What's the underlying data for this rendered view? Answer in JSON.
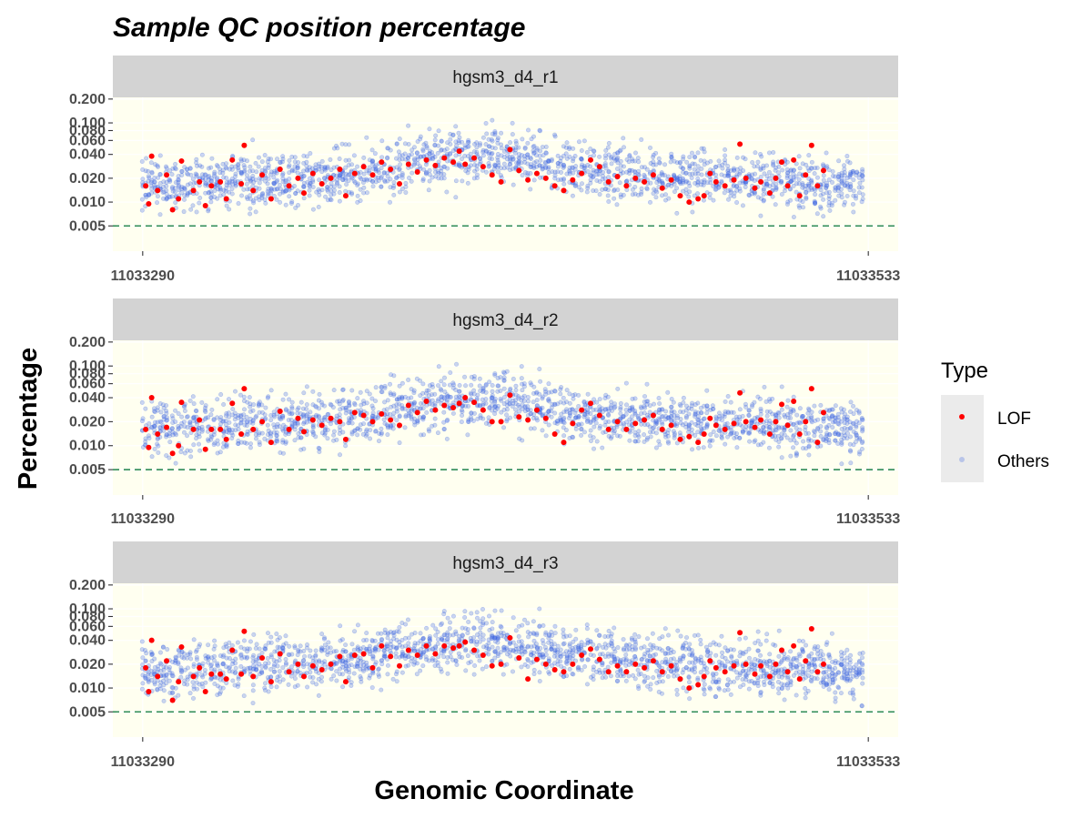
{
  "chart_data": {
    "type": "scatter",
    "title": "Sample QC position percentage",
    "xlabel": "Genomic Coordinate",
    "ylabel": "Percentage",
    "x_ticks": [
      "11033290",
      "11033533"
    ],
    "xlim": [
      11033280,
      11033543
    ],
    "y_scale": "log10",
    "y_ticks": [
      "0.005",
      "0.010",
      "0.020",
      "0.040",
      "0.060",
      "0.080",
      "0.100",
      "0.200"
    ],
    "ylim": [
      0.0024,
      0.21
    ],
    "threshold": 0.005,
    "legend": {
      "title": "Type",
      "placement": "right",
      "entries": [
        {
          "label": "LOF",
          "color": "#ff0000"
        },
        {
          "label": "Others",
          "color": "#4169e1"
        }
      ]
    },
    "colors": {
      "panel_bg": "#fffff0",
      "strip_bg": "#d3d3d3",
      "threshold_line": "#2e8b57",
      "lof": "#ff0000",
      "others": "#4169e1"
    },
    "panels": [
      {
        "strip": "hgsm3_d4_r1",
        "lof_points": [
          [
            11033291,
            0.016
          ],
          [
            11033292,
            0.0095
          ],
          [
            11033293,
            0.038
          ],
          [
            11033295,
            0.014
          ],
          [
            11033298,
            0.022
          ],
          [
            11033300,
            0.008
          ],
          [
            11033302,
            0.011
          ],
          [
            11033303,
            0.033
          ],
          [
            11033307,
            0.014
          ],
          [
            11033309,
            0.018
          ],
          [
            11033311,
            0.009
          ],
          [
            11033313,
            0.016
          ],
          [
            11033316,
            0.018
          ],
          [
            11033318,
            0.011
          ],
          [
            11033320,
            0.034
          ],
          [
            11033323,
            0.017
          ],
          [
            11033324,
            0.052
          ],
          [
            11033327,
            0.014
          ],
          [
            11033330,
            0.022
          ],
          [
            11033333,
            0.011
          ],
          [
            11033336,
            0.026
          ],
          [
            11033339,
            0.016
          ],
          [
            11033342,
            0.02
          ],
          [
            11033344,
            0.013
          ],
          [
            11033347,
            0.023
          ],
          [
            11033350,
            0.017
          ],
          [
            11033353,
            0.02
          ],
          [
            11033356,
            0.026
          ],
          [
            11033358,
            0.012
          ],
          [
            11033361,
            0.023
          ],
          [
            11033364,
            0.028
          ],
          [
            11033367,
            0.022
          ],
          [
            11033370,
            0.032
          ],
          [
            11033373,
            0.026
          ],
          [
            11033376,
            0.017
          ],
          [
            11033379,
            0.03
          ],
          [
            11033382,
            0.024
          ],
          [
            11033385,
            0.034
          ],
          [
            11033388,
            0.029
          ],
          [
            11033391,
            0.036
          ],
          [
            11033394,
            0.032
          ],
          [
            11033396,
            0.044
          ],
          [
            11033398,
            0.03
          ],
          [
            11033401,
            0.036
          ],
          [
            11033404,
            0.028
          ],
          [
            11033407,
            0.022
          ],
          [
            11033410,
            0.018
          ],
          [
            11033413,
            0.046
          ],
          [
            11033416,
            0.025
          ],
          [
            11033419,
            0.019
          ],
          [
            11033422,
            0.023
          ],
          [
            11033425,
            0.02
          ],
          [
            11033428,
            0.016
          ],
          [
            11033431,
            0.014
          ],
          [
            11033434,
            0.019
          ],
          [
            11033437,
            0.023
          ],
          [
            11033440,
            0.034
          ],
          [
            11033443,
            0.028
          ],
          [
            11033446,
            0.018
          ],
          [
            11033449,
            0.021
          ],
          [
            11033452,
            0.016
          ],
          [
            11033455,
            0.02
          ],
          [
            11033458,
            0.018
          ],
          [
            11033461,
            0.022
          ],
          [
            11033464,
            0.015
          ],
          [
            11033467,
            0.019
          ],
          [
            11033470,
            0.012
          ],
          [
            11033473,
            0.01
          ],
          [
            11033476,
            0.011
          ],
          [
            11033478,
            0.012
          ],
          [
            11033480,
            0.023
          ],
          [
            11033482,
            0.018
          ],
          [
            11033485,
            0.016
          ],
          [
            11033488,
            0.019
          ],
          [
            11033490,
            0.054
          ],
          [
            11033492,
            0.02
          ],
          [
            11033495,
            0.015
          ],
          [
            11033497,
            0.018
          ],
          [
            11033500,
            0.013
          ],
          [
            11033502,
            0.02
          ],
          [
            11033504,
            0.032
          ],
          [
            11033506,
            0.016
          ],
          [
            11033508,
            0.034
          ],
          [
            11033510,
            0.012
          ],
          [
            11033512,
            0.022
          ],
          [
            11033514,
            0.052
          ],
          [
            11033516,
            0.016
          ],
          [
            11033518,
            0.025
          ]
        ]
      },
      {
        "strip": "hgsm3_d4_r2",
        "lof_points": [
          [
            11033291,
            0.016
          ],
          [
            11033292,
            0.0095
          ],
          [
            11033293,
            0.04
          ],
          [
            11033295,
            0.014
          ],
          [
            11033298,
            0.017
          ],
          [
            11033300,
            0.008
          ],
          [
            11033302,
            0.01
          ],
          [
            11033303,
            0.035
          ],
          [
            11033307,
            0.016
          ],
          [
            11033309,
            0.021
          ],
          [
            11033311,
            0.009
          ],
          [
            11033313,
            0.016
          ],
          [
            11033316,
            0.016
          ],
          [
            11033318,
            0.012
          ],
          [
            11033320,
            0.034
          ],
          [
            11033323,
            0.014
          ],
          [
            11033324,
            0.052
          ],
          [
            11033327,
            0.016
          ],
          [
            11033330,
            0.02
          ],
          [
            11033333,
            0.011
          ],
          [
            11033336,
            0.027
          ],
          [
            11033339,
            0.016
          ],
          [
            11033342,
            0.022
          ],
          [
            11033344,
            0.015
          ],
          [
            11033347,
            0.021
          ],
          [
            11033350,
            0.018
          ],
          [
            11033353,
            0.022
          ],
          [
            11033356,
            0.02
          ],
          [
            11033358,
            0.012
          ],
          [
            11033361,
            0.026
          ],
          [
            11033364,
            0.024
          ],
          [
            11033367,
            0.02
          ],
          [
            11033370,
            0.025
          ],
          [
            11033373,
            0.021
          ],
          [
            11033376,
            0.018
          ],
          [
            11033379,
            0.032
          ],
          [
            11033382,
            0.026
          ],
          [
            11033385,
            0.036
          ],
          [
            11033388,
            0.028
          ],
          [
            11033391,
            0.032
          ],
          [
            11033394,
            0.03
          ],
          [
            11033396,
            0.034
          ],
          [
            11033398,
            0.04
          ],
          [
            11033401,
            0.035
          ],
          [
            11033404,
            0.028
          ],
          [
            11033407,
            0.02
          ],
          [
            11033410,
            0.02
          ],
          [
            11033413,
            0.043
          ],
          [
            11033416,
            0.023
          ],
          [
            11033419,
            0.021
          ],
          [
            11033422,
            0.028
          ],
          [
            11033425,
            0.022
          ],
          [
            11033428,
            0.014
          ],
          [
            11033431,
            0.011
          ],
          [
            11033434,
            0.019
          ],
          [
            11033437,
            0.028
          ],
          [
            11033440,
            0.034
          ],
          [
            11033443,
            0.024
          ],
          [
            11033446,
            0.016
          ],
          [
            11033449,
            0.02
          ],
          [
            11033452,
            0.016
          ],
          [
            11033455,
            0.019
          ],
          [
            11033458,
            0.021
          ],
          [
            11033461,
            0.024
          ],
          [
            11033464,
            0.016
          ],
          [
            11033467,
            0.018
          ],
          [
            11033470,
            0.012
          ],
          [
            11033473,
            0.013
          ],
          [
            11033476,
            0.011
          ],
          [
            11033478,
            0.014
          ],
          [
            11033480,
            0.022
          ],
          [
            11033482,
            0.018
          ],
          [
            11033485,
            0.016
          ],
          [
            11033488,
            0.019
          ],
          [
            11033490,
            0.046
          ],
          [
            11033492,
            0.02
          ],
          [
            11033495,
            0.017
          ],
          [
            11033497,
            0.021
          ],
          [
            11033500,
            0.014
          ],
          [
            11033502,
            0.02
          ],
          [
            11033504,
            0.033
          ],
          [
            11033506,
            0.018
          ],
          [
            11033508,
            0.036
          ],
          [
            11033510,
            0.014
          ],
          [
            11033512,
            0.02
          ],
          [
            11033514,
            0.052
          ],
          [
            11033516,
            0.011
          ],
          [
            11033518,
            0.026
          ]
        ]
      },
      {
        "strip": "hgsm3_d4_r3",
        "lof_points": [
          [
            11033291,
            0.018
          ],
          [
            11033292,
            0.009
          ],
          [
            11033293,
            0.04
          ],
          [
            11033295,
            0.014
          ],
          [
            11033298,
            0.022
          ],
          [
            11033300,
            0.007
          ],
          [
            11033302,
            0.012
          ],
          [
            11033303,
            0.033
          ],
          [
            11033307,
            0.014
          ],
          [
            11033309,
            0.018
          ],
          [
            11033311,
            0.009
          ],
          [
            11033313,
            0.015
          ],
          [
            11033316,
            0.015
          ],
          [
            11033318,
            0.013
          ],
          [
            11033320,
            0.03
          ],
          [
            11033323,
            0.015
          ],
          [
            11033324,
            0.052
          ],
          [
            11033327,
            0.014
          ],
          [
            11033330,
            0.024
          ],
          [
            11033333,
            0.012
          ],
          [
            11033336,
            0.027
          ],
          [
            11033339,
            0.016
          ],
          [
            11033342,
            0.02
          ],
          [
            11033344,
            0.014
          ],
          [
            11033347,
            0.019
          ],
          [
            11033350,
            0.017
          ],
          [
            11033353,
            0.02
          ],
          [
            11033356,
            0.025
          ],
          [
            11033358,
            0.012
          ],
          [
            11033361,
            0.026
          ],
          [
            11033364,
            0.027
          ],
          [
            11033367,
            0.018
          ],
          [
            11033370,
            0.034
          ],
          [
            11033373,
            0.025
          ],
          [
            11033376,
            0.019
          ],
          [
            11033379,
            0.03
          ],
          [
            11033382,
            0.026
          ],
          [
            11033385,
            0.034
          ],
          [
            11033388,
            0.027
          ],
          [
            11033391,
            0.034
          ],
          [
            11033394,
            0.032
          ],
          [
            11033396,
            0.034
          ],
          [
            11033398,
            0.038
          ],
          [
            11033401,
            0.03
          ],
          [
            11033404,
            0.026
          ],
          [
            11033407,
            0.019
          ],
          [
            11033410,
            0.02
          ],
          [
            11033413,
            0.043
          ],
          [
            11033416,
            0.024
          ],
          [
            11033419,
            0.013
          ],
          [
            11033422,
            0.023
          ],
          [
            11033425,
            0.02
          ],
          [
            11033428,
            0.017
          ],
          [
            11033431,
            0.016
          ],
          [
            11033434,
            0.02
          ],
          [
            11033437,
            0.026
          ],
          [
            11033440,
            0.031
          ],
          [
            11033443,
            0.023
          ],
          [
            11033446,
            0.016
          ],
          [
            11033449,
            0.019
          ],
          [
            11033452,
            0.016
          ],
          [
            11033455,
            0.02
          ],
          [
            11033458,
            0.018
          ],
          [
            11033461,
            0.022
          ],
          [
            11033464,
            0.016
          ],
          [
            11033467,
            0.019
          ],
          [
            11033470,
            0.013
          ],
          [
            11033473,
            0.01
          ],
          [
            11033476,
            0.011
          ],
          [
            11033478,
            0.014
          ],
          [
            11033480,
            0.022
          ],
          [
            11033482,
            0.018
          ],
          [
            11033485,
            0.016
          ],
          [
            11033488,
            0.019
          ],
          [
            11033490,
            0.05
          ],
          [
            11033492,
            0.02
          ],
          [
            11033495,
            0.015
          ],
          [
            11033497,
            0.019
          ],
          [
            11033500,
            0.014
          ],
          [
            11033502,
            0.02
          ],
          [
            11033504,
            0.03
          ],
          [
            11033506,
            0.016
          ],
          [
            11033508,
            0.034
          ],
          [
            11033510,
            0.013
          ],
          [
            11033512,
            0.022
          ],
          [
            11033514,
            0.056
          ],
          [
            11033516,
            0.016
          ],
          [
            11033518,
            0.02
          ]
        ]
      }
    ]
  }
}
